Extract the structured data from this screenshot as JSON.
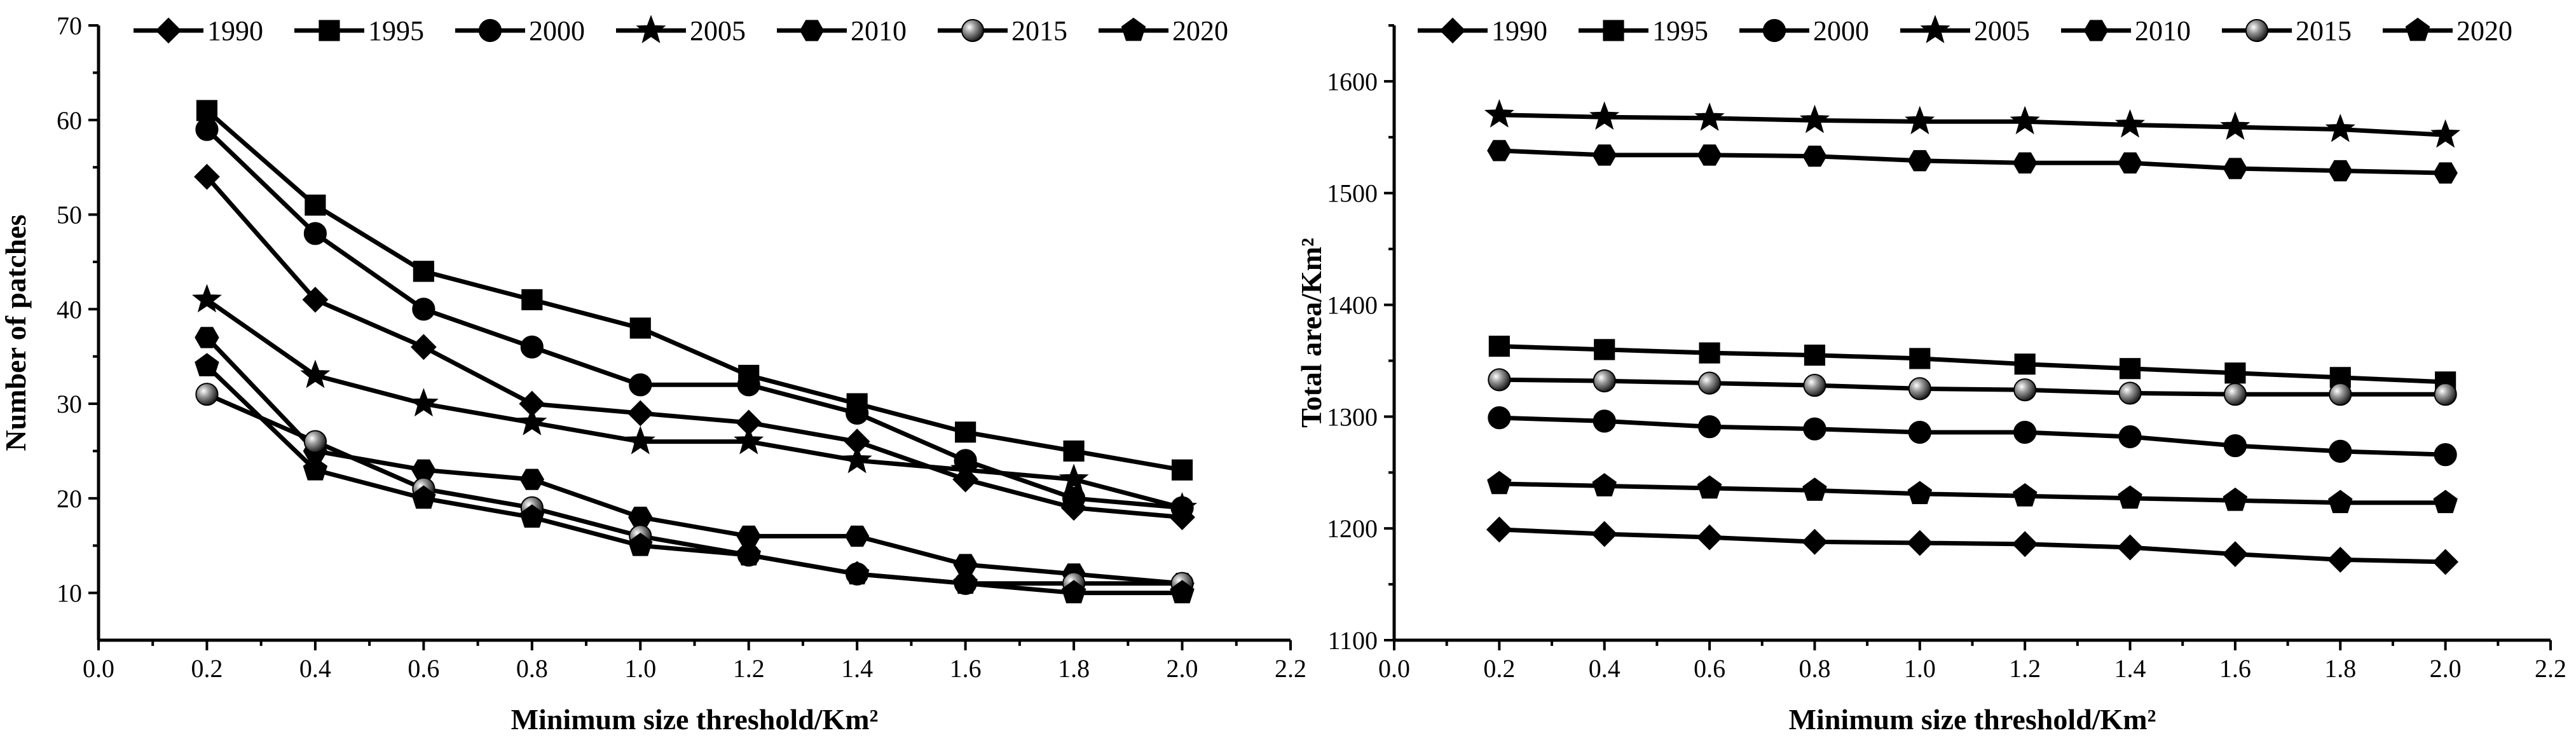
{
  "chart_data": [
    {
      "type": "line",
      "title": "",
      "xlabel": "Minimum size threshold/Km²",
      "ylabel": "Number of patches",
      "xlim": [
        0.0,
        2.2
      ],
      "ylim": [
        5,
        70
      ],
      "xticks": [
        0.0,
        0.2,
        0.4,
        0.6,
        0.8,
        1.0,
        1.2,
        1.4,
        1.6,
        1.8,
        2.0,
        2.2
      ],
      "xtick_labels": [
        "0.0",
        "0.2",
        "0.4",
        "0.6",
        "0.8",
        "1.0",
        "1.2",
        "1.4",
        "1.6",
        "1.8",
        "2.0",
        "2.2"
      ],
      "yticks": [
        10,
        20,
        30,
        40,
        50,
        60,
        70
      ],
      "ytick_labels": [
        "10",
        "20",
        "30",
        "40",
        "50",
        "60",
        "70"
      ],
      "legend_position": "top",
      "x": [
        0.2,
        0.4,
        0.6,
        0.8,
        1.0,
        1.2,
        1.4,
        1.6,
        1.8,
        2.0
      ],
      "series": [
        {
          "name": "1990",
          "marker": "diamond",
          "values": [
            54,
            41,
            36,
            30,
            29,
            28,
            26,
            22,
            19,
            18
          ]
        },
        {
          "name": "1995",
          "marker": "square",
          "values": [
            61,
            51,
            44,
            41,
            38,
            33,
            30,
            27,
            25,
            23
          ]
        },
        {
          "name": "2000",
          "marker": "circle",
          "values": [
            59,
            48,
            40,
            36,
            32,
            32,
            29,
            24,
            20,
            19
          ]
        },
        {
          "name": "2005",
          "marker": "star",
          "values": [
            41,
            33,
            30,
            28,
            26,
            26,
            24,
            23,
            22,
            19
          ]
        },
        {
          "name": "2010",
          "marker": "hexagon",
          "values": [
            37,
            25,
            23,
            22,
            18,
            16,
            16,
            13,
            12,
            11
          ]
        },
        {
          "name": "2015",
          "marker": "sphere",
          "values": [
            31,
            26,
            21,
            19,
            16,
            14,
            12,
            11,
            11,
            11
          ]
        },
        {
          "name": "2020",
          "marker": "pentagon",
          "values": [
            34,
            23,
            20,
            18,
            15,
            14,
            12,
            11,
            10,
            10
          ]
        }
      ]
    },
    {
      "type": "line",
      "title": "",
      "xlabel": "Minimum size threshold/Km²",
      "ylabel": "Total area/Km²",
      "xlim": [
        0.0,
        2.2
      ],
      "ylim": [
        1100,
        1650
      ],
      "xticks": [
        0.0,
        0.2,
        0.4,
        0.6,
        0.8,
        1.0,
        1.2,
        1.4,
        1.6,
        1.8,
        2.0,
        2.2
      ],
      "xtick_labels": [
        "0.0",
        "0.2",
        "0.4",
        "0.6",
        "0.8",
        "1.0",
        "1.2",
        "1.4",
        "1.6",
        "1.8",
        "2.0",
        "2.2"
      ],
      "yticks": [
        1100,
        1200,
        1300,
        1400,
        1500,
        1600
      ],
      "ytick_labels": [
        "1100",
        "1200",
        "1300",
        "1400",
        "1500",
        "1600"
      ],
      "legend_position": "top",
      "x": [
        0.2,
        0.4,
        0.6,
        0.8,
        1.0,
        1.2,
        1.4,
        1.6,
        1.8,
        2.0
      ],
      "series": [
        {
          "name": "1990",
          "marker": "diamond",
          "values": [
            1199,
            1195,
            1192,
            1188,
            1187,
            1186,
            1183,
            1177,
            1172,
            1170
          ]
        },
        {
          "name": "1995",
          "marker": "square",
          "values": [
            1363,
            1360,
            1357,
            1355,
            1352,
            1347,
            1343,
            1339,
            1335,
            1331
          ]
        },
        {
          "name": "2000",
          "marker": "circle",
          "values": [
            1299,
            1296,
            1291,
            1289,
            1286,
            1286,
            1282,
            1274,
            1269,
            1266
          ]
        },
        {
          "name": "2005",
          "marker": "star",
          "values": [
            1570,
            1568,
            1567,
            1565,
            1564,
            1564,
            1561,
            1559,
            1557,
            1552
          ]
        },
        {
          "name": "2010",
          "marker": "hexagon",
          "values": [
            1538,
            1534,
            1534,
            1533,
            1529,
            1527,
            1527,
            1522,
            1520,
            1518
          ]
        },
        {
          "name": "2015",
          "marker": "sphere",
          "values": [
            1333,
            1332,
            1330,
            1328,
            1325,
            1324,
            1321,
            1320,
            1320,
            1320
          ]
        },
        {
          "name": "2020",
          "marker": "pentagon",
          "values": [
            1240,
            1238,
            1236,
            1234,
            1231,
            1229,
            1227,
            1225,
            1223,
            1223
          ]
        }
      ]
    }
  ]
}
